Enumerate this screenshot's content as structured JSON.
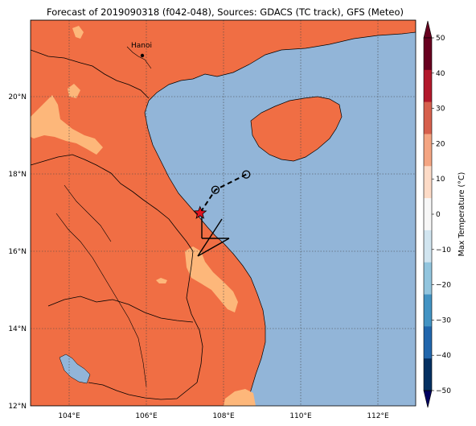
{
  "title": "Forecast of 2019090318 (f042-048), Sources: GDACS (TC track), GFS (Meteo)",
  "city": {
    "name": "Hanoi"
  },
  "lon_ticks": [
    "104°E",
    "106°E",
    "108°E",
    "110°E",
    "112°E"
  ],
  "lat_ticks": [
    "20°N",
    "18°N",
    "16°N",
    "14°N",
    "12°N"
  ],
  "colorbar": {
    "label": "Max Temperature (°C)",
    "ticks": [
      "50",
      "40",
      "30",
      "20",
      "10",
      "0",
      "−10",
      "−20",
      "−30",
      "−40",
      "−50"
    ],
    "colors": [
      "#67001f",
      "#b2182b",
      "#d6604d",
      "#f4a582",
      "#fddbc7",
      "#f7f7f7",
      "#d1e5f0",
      "#92c5de",
      "#4393c3",
      "#2166ac",
      "#053061"
    ]
  },
  "colors": {
    "sea": "#92b5d8",
    "land_hot": "#f06e44",
    "land_warm": "#fdb77a",
    "land_cool": "#92b5d8",
    "storm_marker": "#e0121f"
  },
  "chart_data": {
    "type": "map",
    "extent": {
      "lon": [
        103,
        113
      ],
      "lat": [
        12,
        22
      ]
    },
    "track": [
      {
        "lon": 108.6,
        "lat": 18.0,
        "marker": "open-circle"
      },
      {
        "lon": 107.8,
        "lat": 17.6,
        "marker": "open-circle"
      },
      {
        "lon": 107.4,
        "lat": 17.0,
        "marker": "star"
      }
    ]
  }
}
